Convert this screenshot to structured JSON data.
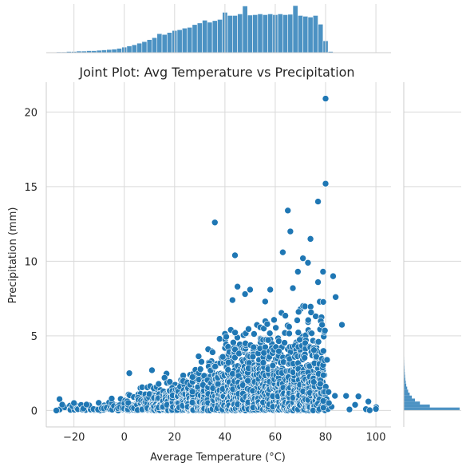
{
  "chart_data": {
    "type": "scatter",
    "title": "Joint Plot: Avg Temperature vs Precipitation",
    "xlabel": "Average Temperature (°C)",
    "ylabel": "Precipitation (mm)",
    "xlim": [
      -31,
      106
    ],
    "ylim": [
      -1.1,
      22
    ],
    "x_ticks": [
      -20,
      0,
      20,
      40,
      60,
      80,
      100
    ],
    "y_ticks": [
      0,
      5,
      10,
      15,
      20
    ],
    "grid": true,
    "color": "#1f77b4",
    "hist_color": "#4c92c3",
    "outliers": [
      [
        80,
        20.9
      ],
      [
        80,
        15.2
      ],
      [
        77,
        14.0
      ],
      [
        36,
        12.6
      ],
      [
        65,
        13.4
      ],
      [
        66,
        12.0
      ],
      [
        74,
        11.5
      ],
      [
        44,
        10.4
      ],
      [
        63,
        10.6
      ],
      [
        71,
        10.2
      ],
      [
        73,
        9.9
      ],
      [
        79,
        9.3
      ],
      [
        83,
        9.0
      ],
      [
        69,
        9.3
      ],
      [
        67,
        8.2
      ],
      [
        45,
        8.3
      ],
      [
        58,
        8.1
      ],
      [
        50,
        8.1
      ],
      [
        77,
        8.6
      ],
      [
        84,
        7.6
      ],
      [
        43,
        7.4
      ],
      [
        48,
        7.8
      ],
      [
        56,
        7.3
      ],
      [
        2,
        2.5
      ],
      [
        11,
        2.7
      ],
      [
        -20,
        0.5
      ],
      [
        -15,
        0.4
      ],
      [
        -27,
        0.0
      ],
      [
        97,
        0.6
      ],
      [
        100,
        0.1
      ],
      [
        -5,
        0.8
      ]
    ],
    "marginal_x": {
      "bin_start": -27,
      "bin_width": 2,
      "counts": [
        2,
        2,
        3,
        3,
        4,
        4,
        5,
        5,
        6,
        7,
        8,
        9,
        11,
        14,
        17,
        20,
        24,
        28,
        33,
        38,
        48,
        46,
        51,
        56,
        58,
        62,
        64,
        71,
        75,
        82,
        77,
        81,
        84,
        102,
        94,
        94,
        98,
        118,
        95,
        96,
        98,
        96,
        98,
        96,
        98,
        96,
        97,
        119,
        94,
        92,
        90,
        94,
        72,
        30,
        3,
        1,
        1,
        1,
        1,
        1,
        1,
        1,
        1,
        1
      ]
    },
    "marginal_y": {
      "bin_width": 0.2,
      "counts": [
        900,
        420,
        260,
        180,
        130,
        95,
        70,
        55,
        40,
        32,
        25,
        20,
        16,
        13,
        11,
        9,
        8,
        7,
        6,
        5,
        5,
        4,
        4,
        3,
        3,
        3,
        2,
        2,
        2,
        2,
        2,
        2,
        1,
        1,
        1,
        1,
        1,
        1,
        1,
        1,
        1,
        1,
        1,
        1,
        1,
        1,
        1,
        1,
        1,
        1,
        1,
        1,
        1,
        1,
        1,
        1,
        1,
        1,
        1,
        1,
        1,
        1,
        1,
        1,
        1,
        1,
        1,
        1,
        1,
        1,
        1,
        1,
        1,
        1,
        1,
        1,
        1,
        1,
        1,
        1
      ]
    }
  }
}
